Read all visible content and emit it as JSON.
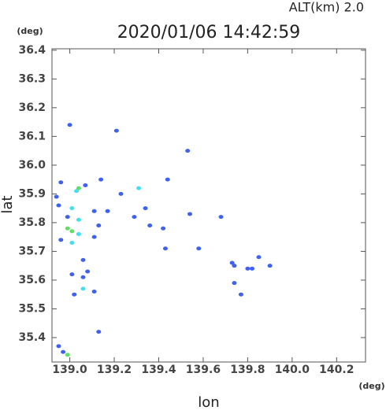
{
  "chart_data": {
    "type": "scatter",
    "title": "2020/01/06 14:42:59",
    "subtitle": "ALT(km) 2.0",
    "y_unit": "(deg)",
    "x_unit": "(deg)",
    "x_label": "lon",
    "y_label": "lat",
    "xlim": [
      138.92,
      140.33
    ],
    "ylim": [
      35.315,
      36.405
    ],
    "xticks": [
      {
        "value": 139,
        "label": "139.0"
      },
      139.2,
      139.4,
      139.6,
      139.8,
      {
        "value": 140,
        "label": "140.0"
      },
      140.2
    ],
    "yticks": [
      36.4,
      36.3,
      36.2,
      36.1,
      {
        "value": 36,
        "label": "36.0"
      },
      35.9,
      35.8,
      35.7,
      35.6,
      35.5,
      35.4
    ],
    "series": [
      {
        "color": "#4060f0",
        "x": [
          139.0,
          139.21,
          139.53,
          139.14,
          139.44,
          138.96,
          139.07,
          139.23,
          138.94,
          138.95,
          139.11,
          139.17,
          139.34,
          139.54,
          139.68,
          139.13,
          139.29,
          139.36,
          139.42,
          139.11,
          139.43,
          139.58,
          139.06,
          139.08,
          139.01,
          139.06,
          139.11,
          139.73,
          139.74,
          139.8,
          139.82,
          139.85,
          139.9,
          139.74,
          139.77,
          139.13,
          138.95,
          138.97,
          139.02,
          138.99,
          138.96
        ],
        "values": [
          36.14,
          36.12,
          36.05,
          35.95,
          35.95,
          35.94,
          35.93,
          35.9,
          35.89,
          35.86,
          35.84,
          35.84,
          35.85,
          35.83,
          35.82,
          35.79,
          35.82,
          35.79,
          35.78,
          35.75,
          35.71,
          35.71,
          35.67,
          35.63,
          35.62,
          35.61,
          35.56,
          35.66,
          35.65,
          35.64,
          35.64,
          35.68,
          35.65,
          35.59,
          35.55,
          35.42,
          35.37,
          35.35,
          35.55,
          35.82,
          35.74
        ]
      },
      {
        "color": "#40e0f0",
        "x": [
          139.03,
          139.01,
          139.04,
          139.31,
          139.01,
          139.06,
          139.04
        ],
        "values": [
          35.91,
          35.85,
          35.81,
          35.92,
          35.73,
          35.57,
          35.76
        ]
      },
      {
        "color": "#60e060",
        "x": [
          138.99,
          139.01,
          138.99,
          139.04
        ],
        "values": [
          35.78,
          35.77,
          35.34,
          35.92
        ]
      }
    ]
  }
}
